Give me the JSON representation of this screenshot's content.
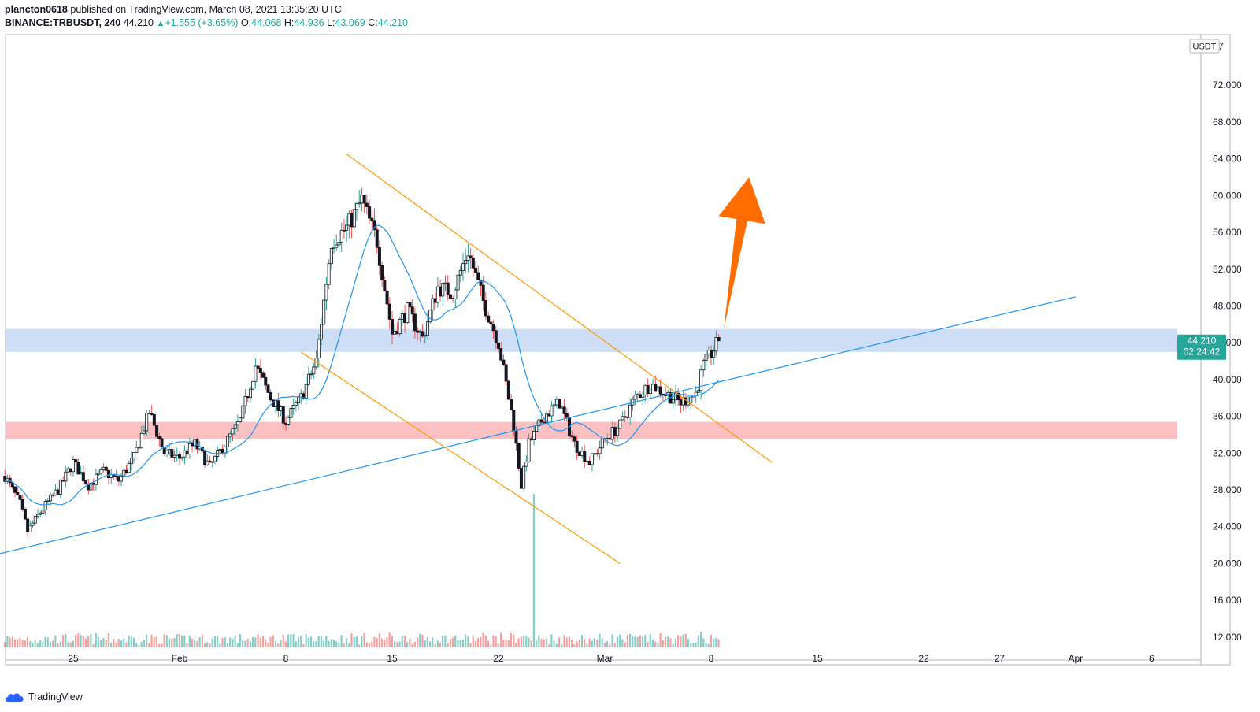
{
  "header": {
    "user": "plancton0618",
    "published_text": " published on TradingView.com, March 08, 2021 13:35:20 UTC",
    "symbol": "BINANCE:TRBUSDT, 240",
    "last": "44.210",
    "change": "+1.555 (+3.65%)",
    "o_label": "O:",
    "o_value": "44.068",
    "h_label": "H:",
    "h_value": "44.936",
    "l_label": "L:",
    "l_value": "43.069",
    "c_label": "C:",
    "c_value": "44.210"
  },
  "footer": {
    "brand": "TradingView"
  },
  "colors": {
    "up": "#26a69a",
    "down": "#ef5350",
    "candle": "#131722",
    "ma": "#2196f3",
    "trendline": "#2196f3",
    "channel": "#ff9800",
    "resistance_zone": "#c6d8f6",
    "support_zone": "#fbb9bb",
    "arrow": "#ff6d00",
    "price_badge": "#26a69a"
  },
  "chart_data": {
    "type": "candlestick",
    "title": "",
    "xlabel": "",
    "ylabel": "",
    "currency_label": "USDT",
    "ylim": [
      9.5,
      77.5
    ],
    "y_ticks": [
      12,
      16,
      20,
      24,
      28,
      32,
      36,
      40,
      44,
      48,
      52,
      56,
      60,
      64,
      68,
      72
    ],
    "y_tick_labels": [
      "12.000",
      "16.000",
      "20.000",
      "24.000",
      "28.000",
      "32.000",
      "36.000",
      "40.000",
      "44.000",
      "48.000",
      "52.000",
      "56.000",
      "60.000",
      "64.000",
      "68.000",
      "72.000"
    ],
    "y_top_partial_label": "7",
    "x_ticks": [
      {
        "label": "25",
        "date": "2021-01-25"
      },
      {
        "label": "Feb",
        "date": "2021-02-01"
      },
      {
        "label": "8",
        "date": "2021-02-08"
      },
      {
        "label": "15",
        "date": "2021-02-15"
      },
      {
        "label": "22",
        "date": "2021-02-22"
      },
      {
        "label": "Mar",
        "date": "2021-03-01"
      },
      {
        "label": "8",
        "date": "2021-03-08"
      },
      {
        "label": "15",
        "date": "2021-03-15"
      },
      {
        "label": "22",
        "date": "2021-03-22"
      },
      {
        "label": "27",
        "date": "2021-03-27"
      },
      {
        "label": "Apr",
        "date": "2021-04-01"
      },
      {
        "label": "6",
        "date": "2021-04-06"
      }
    ],
    "last_price": "44.210",
    "countdown": "02:24:42",
    "price_path": [
      [
        "2021-01-20T12:00",
        29.5
      ],
      [
        "2021-01-21T12:00",
        26.5
      ],
      [
        "2021-01-22T00:00",
        23.5
      ],
      [
        "2021-01-23T00:00",
        26.0
      ],
      [
        "2021-01-24T00:00",
        28.0
      ],
      [
        "2021-01-25T00:00",
        31.0
      ],
      [
        "2021-01-26T00:00",
        28.5
      ],
      [
        "2021-01-27T00:00",
        30.0
      ],
      [
        "2021-01-28T00:00",
        29.0
      ],
      [
        "2021-01-29T00:00",
        31.5
      ],
      [
        "2021-01-30T00:00",
        36.5
      ],
      [
        "2021-01-31T00:00",
        32.0
      ],
      [
        "2021-02-01T00:00",
        31.5
      ],
      [
        "2021-02-02T00:00",
        33.0
      ],
      [
        "2021-02-03T00:00",
        30.5
      ],
      [
        "2021-02-04T00:00",
        33.0
      ],
      [
        "2021-02-05T00:00",
        35.5
      ],
      [
        "2021-02-06T00:00",
        41.5
      ],
      [
        "2021-02-07T00:00",
        38.0
      ],
      [
        "2021-02-08T00:00",
        35.5
      ],
      [
        "2021-02-09T00:00",
        38.0
      ],
      [
        "2021-02-10T00:00",
        42.0
      ],
      [
        "2021-02-11T00:00",
        55.0
      ],
      [
        "2021-02-12T00:00",
        56.5
      ],
      [
        "2021-02-13T00:00",
        59.5
      ],
      [
        "2021-02-14T00:00",
        55.0
      ],
      [
        "2021-02-15T00:00",
        45.0
      ],
      [
        "2021-02-16T00:00",
        47.5
      ],
      [
        "2021-02-17T00:00",
        44.5
      ],
      [
        "2021-02-18T00:00",
        50.0
      ],
      [
        "2021-02-19T00:00",
        49.5
      ],
      [
        "2021-02-20T00:00",
        54.0
      ],
      [
        "2021-02-21T00:00",
        48.5
      ],
      [
        "2021-02-22T00:00",
        44.0
      ],
      [
        "2021-02-23T00:00",
        35.0
      ],
      [
        "2021-02-23T12:00",
        28.5
      ],
      [
        "2021-02-24T00:00",
        33.0
      ],
      [
        "2021-02-25T00:00",
        36.0
      ],
      [
        "2021-02-26T00:00",
        37.5
      ],
      [
        "2021-02-27T00:00",
        33.0
      ],
      [
        "2021-02-28T00:00",
        31.0
      ],
      [
        "2021-03-01T00:00",
        33.5
      ],
      [
        "2021-03-02T00:00",
        35.0
      ],
      [
        "2021-03-03T00:00",
        38.0
      ],
      [
        "2021-03-04T00:00",
        39.5
      ],
      [
        "2021-03-05T00:00",
        38.5
      ],
      [
        "2021-03-06T00:00",
        37.5
      ],
      [
        "2021-03-07T00:00",
        38.5
      ],
      [
        "2021-03-07T12:00",
        41.5
      ],
      [
        "2021-03-08T12:00",
        44.21
      ]
    ],
    "volume_spike": {
      "date": "2021-02-24T09:00",
      "note": "tall volume bar"
    },
    "drawings": {
      "ascending_trendline": [
        [
          "2021-01-20T00:00",
          21.0
        ],
        [
          "2021-04-01T00:00",
          49.0
        ]
      ],
      "channel_upper": [
        [
          "2021-02-12T00:00",
          64.5
        ],
        [
          "2021-03-12T00:00",
          31.0
        ]
      ],
      "channel_lower": [
        [
          "2021-02-09T00:00",
          43.0
        ],
        [
          "2021-03-02T00:00",
          20.0
        ]
      ],
      "resistance_zone": [
        43.0,
        45.5
      ],
      "support_zone": [
        33.5,
        35.4
      ],
      "arrow": {
        "from": [
          "2021-03-08T20:00",
          45.5
        ],
        "to": [
          "2021-03-10T12:00",
          62.0
        ]
      }
    }
  }
}
